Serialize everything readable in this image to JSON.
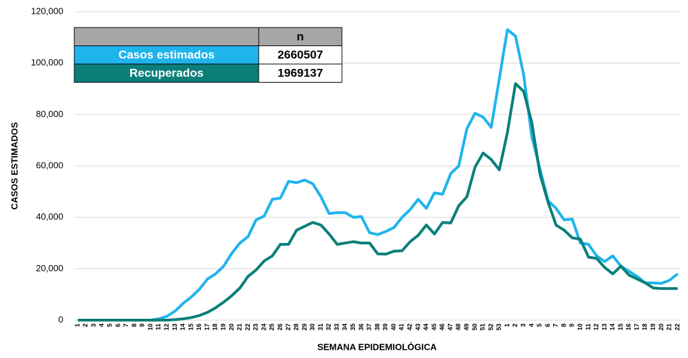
{
  "chart_data": {
    "type": "line",
    "xlabel": "SEMANA EPIDEMIOLÓGICA",
    "ylabel": "CASOS ESTIMADOS",
    "categories": [
      "1",
      "2",
      "3",
      "4",
      "5",
      "6",
      "7",
      "8",
      "9",
      "10",
      "11",
      "12",
      "13",
      "14",
      "15",
      "16",
      "17",
      "18",
      "19",
      "20",
      "21",
      "22",
      "23",
      "24",
      "25",
      "26",
      "27",
      "28",
      "29",
      "30",
      "31",
      "32",
      "33",
      "34",
      "35",
      "36",
      "37",
      "38",
      "39",
      "40",
      "41",
      "42",
      "43",
      "44",
      "45",
      "46",
      "47",
      "48",
      "49",
      "50",
      "51",
      "52",
      "53",
      "1",
      "2",
      "3",
      "4",
      "5",
      "6",
      "7",
      "8",
      "9",
      "10",
      "11",
      "12",
      "13",
      "14",
      "15",
      "16",
      "17",
      "18",
      "19",
      "20",
      "21",
      "22"
    ],
    "ylim": [
      0,
      120000
    ],
    "yticks": [
      {
        "value": 0,
        "label": "0"
      },
      {
        "value": 20000,
        "label": "20,000"
      },
      {
        "value": 40000,
        "label": "40,000"
      },
      {
        "value": 60000,
        "label": "60,000"
      },
      {
        "value": 80000,
        "label": "80,000"
      },
      {
        "value": 100000,
        "label": "100,000"
      },
      {
        "value": 120000,
        "label": "120,000"
      }
    ],
    "grid": true,
    "table_header": "n",
    "series": [
      {
        "name": "Casos estimados",
        "color": "#1fb4ec",
        "total": 2660507,
        "values": [
          0,
          0,
          0,
          0,
          0,
          0,
          0,
          0,
          0,
          0,
          500,
          1500,
          3500,
          6500,
          9000,
          12000,
          16000,
          18000,
          21000,
          26000,
          30000,
          32500,
          39000,
          40500,
          47000,
          47500,
          54000,
          53500,
          54500,
          53000,
          48000,
          41500,
          41800,
          41800,
          40000,
          40300,
          34000,
          33300,
          34500,
          36000,
          40000,
          43000,
          47000,
          43500,
          49500,
          49000,
          57000,
          60000,
          74500,
          80500,
          79000,
          75000,
          94000,
          113000,
          110500,
          95500,
          71500,
          59000,
          46500,
          43500,
          39000,
          39300,
          30000,
          29500,
          25000,
          22800,
          25000,
          21000,
          19000,
          17000,
          14500,
          14500,
          14300,
          15500,
          18000
        ]
      },
      {
        "name": "Recuperados",
        "color": "#0a7f7a",
        "total": 1969137,
        "values": [
          0,
          0,
          0,
          0,
          0,
          0,
          0,
          0,
          0,
          0,
          0,
          0,
          200,
          500,
          1000,
          1800,
          3000,
          4800,
          7000,
          9500,
          12500,
          17000,
          19500,
          23000,
          25000,
          29500,
          29500,
          35000,
          36500,
          38000,
          37000,
          33500,
          29500,
          30000,
          30500,
          30000,
          30000,
          25800,
          25700,
          26800,
          27000,
          30500,
          33000,
          37000,
          33500,
          38000,
          37800,
          44500,
          48000,
          59500,
          65000,
          62500,
          58500,
          73000,
          92000,
          89000,
          77000,
          57000,
          46000,
          37000,
          35000,
          32000,
          31500,
          24500,
          24000,
          20500,
          18000,
          21000,
          17500,
          16000,
          14500,
          12500,
          12300,
          12300,
          12300
        ]
      }
    ]
  }
}
